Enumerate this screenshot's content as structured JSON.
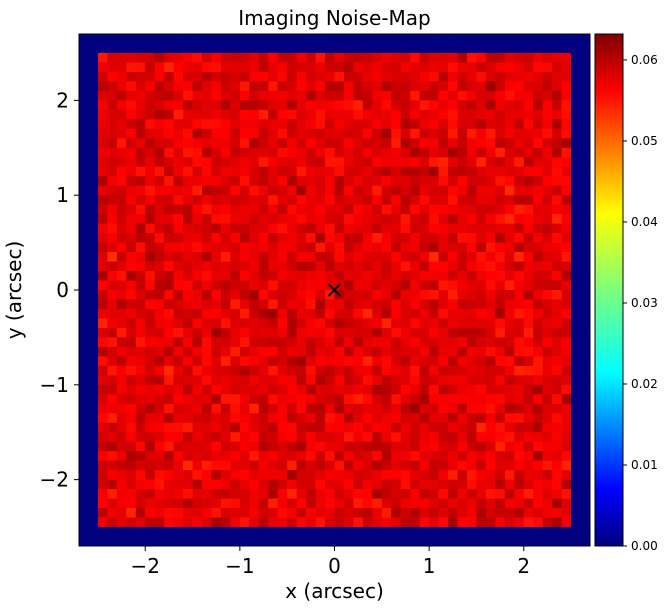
{
  "chart_data": {
    "type": "heatmap",
    "title": "Imaging Noise-Map",
    "xlabel": "x (arcsec)",
    "ylabel": "y (arcsec)",
    "xlim": [
      -2.7,
      2.7
    ],
    "ylim": [
      -2.7,
      2.7
    ],
    "xticks": [
      {
        "value": -2,
        "label": "−2"
      },
      {
        "value": -1,
        "label": "−1"
      },
      {
        "value": 0,
        "label": "0"
      },
      {
        "value": 1,
        "label": "1"
      },
      {
        "value": 2,
        "label": "2"
      }
    ],
    "yticks": [
      {
        "value": 2,
        "label": "2"
      },
      {
        "value": 1,
        "label": "1"
      },
      {
        "value": 0,
        "label": "0"
      },
      {
        "value": -1,
        "label": "−1"
      },
      {
        "value": -2,
        "label": "−2"
      }
    ],
    "colormap": "jet",
    "colorbar": {
      "vmin": 0.0,
      "vmax": 0.0632,
      "ticks": [
        {
          "value": 0.0,
          "label": "0.00"
        },
        {
          "value": 0.01,
          "label": "0.01"
        },
        {
          "value": 0.02,
          "label": "0.02"
        },
        {
          "value": 0.03,
          "label": "0.03"
        },
        {
          "value": 0.04,
          "label": "0.04"
        },
        {
          "value": 0.05,
          "label": "0.05"
        },
        {
          "value": 0.06,
          "label": "0.06"
        }
      ]
    },
    "grid": {
      "pixel_scale_arcsec": 0.1,
      "shape": [
        54,
        54
      ],
      "masked_region_value": 0.0,
      "unmasked_extent_arcsec": [
        -2.5,
        2.5,
        -2.5,
        2.5
      ],
      "noise_value_range": [
        0.052,
        0.062
      ],
      "noise_value_typical": 0.057
    },
    "markers": [
      {
        "x": 0.0,
        "y": 0.0,
        "symbol": "x",
        "color": "#000000"
      }
    ],
    "grid_lines": false
  }
}
